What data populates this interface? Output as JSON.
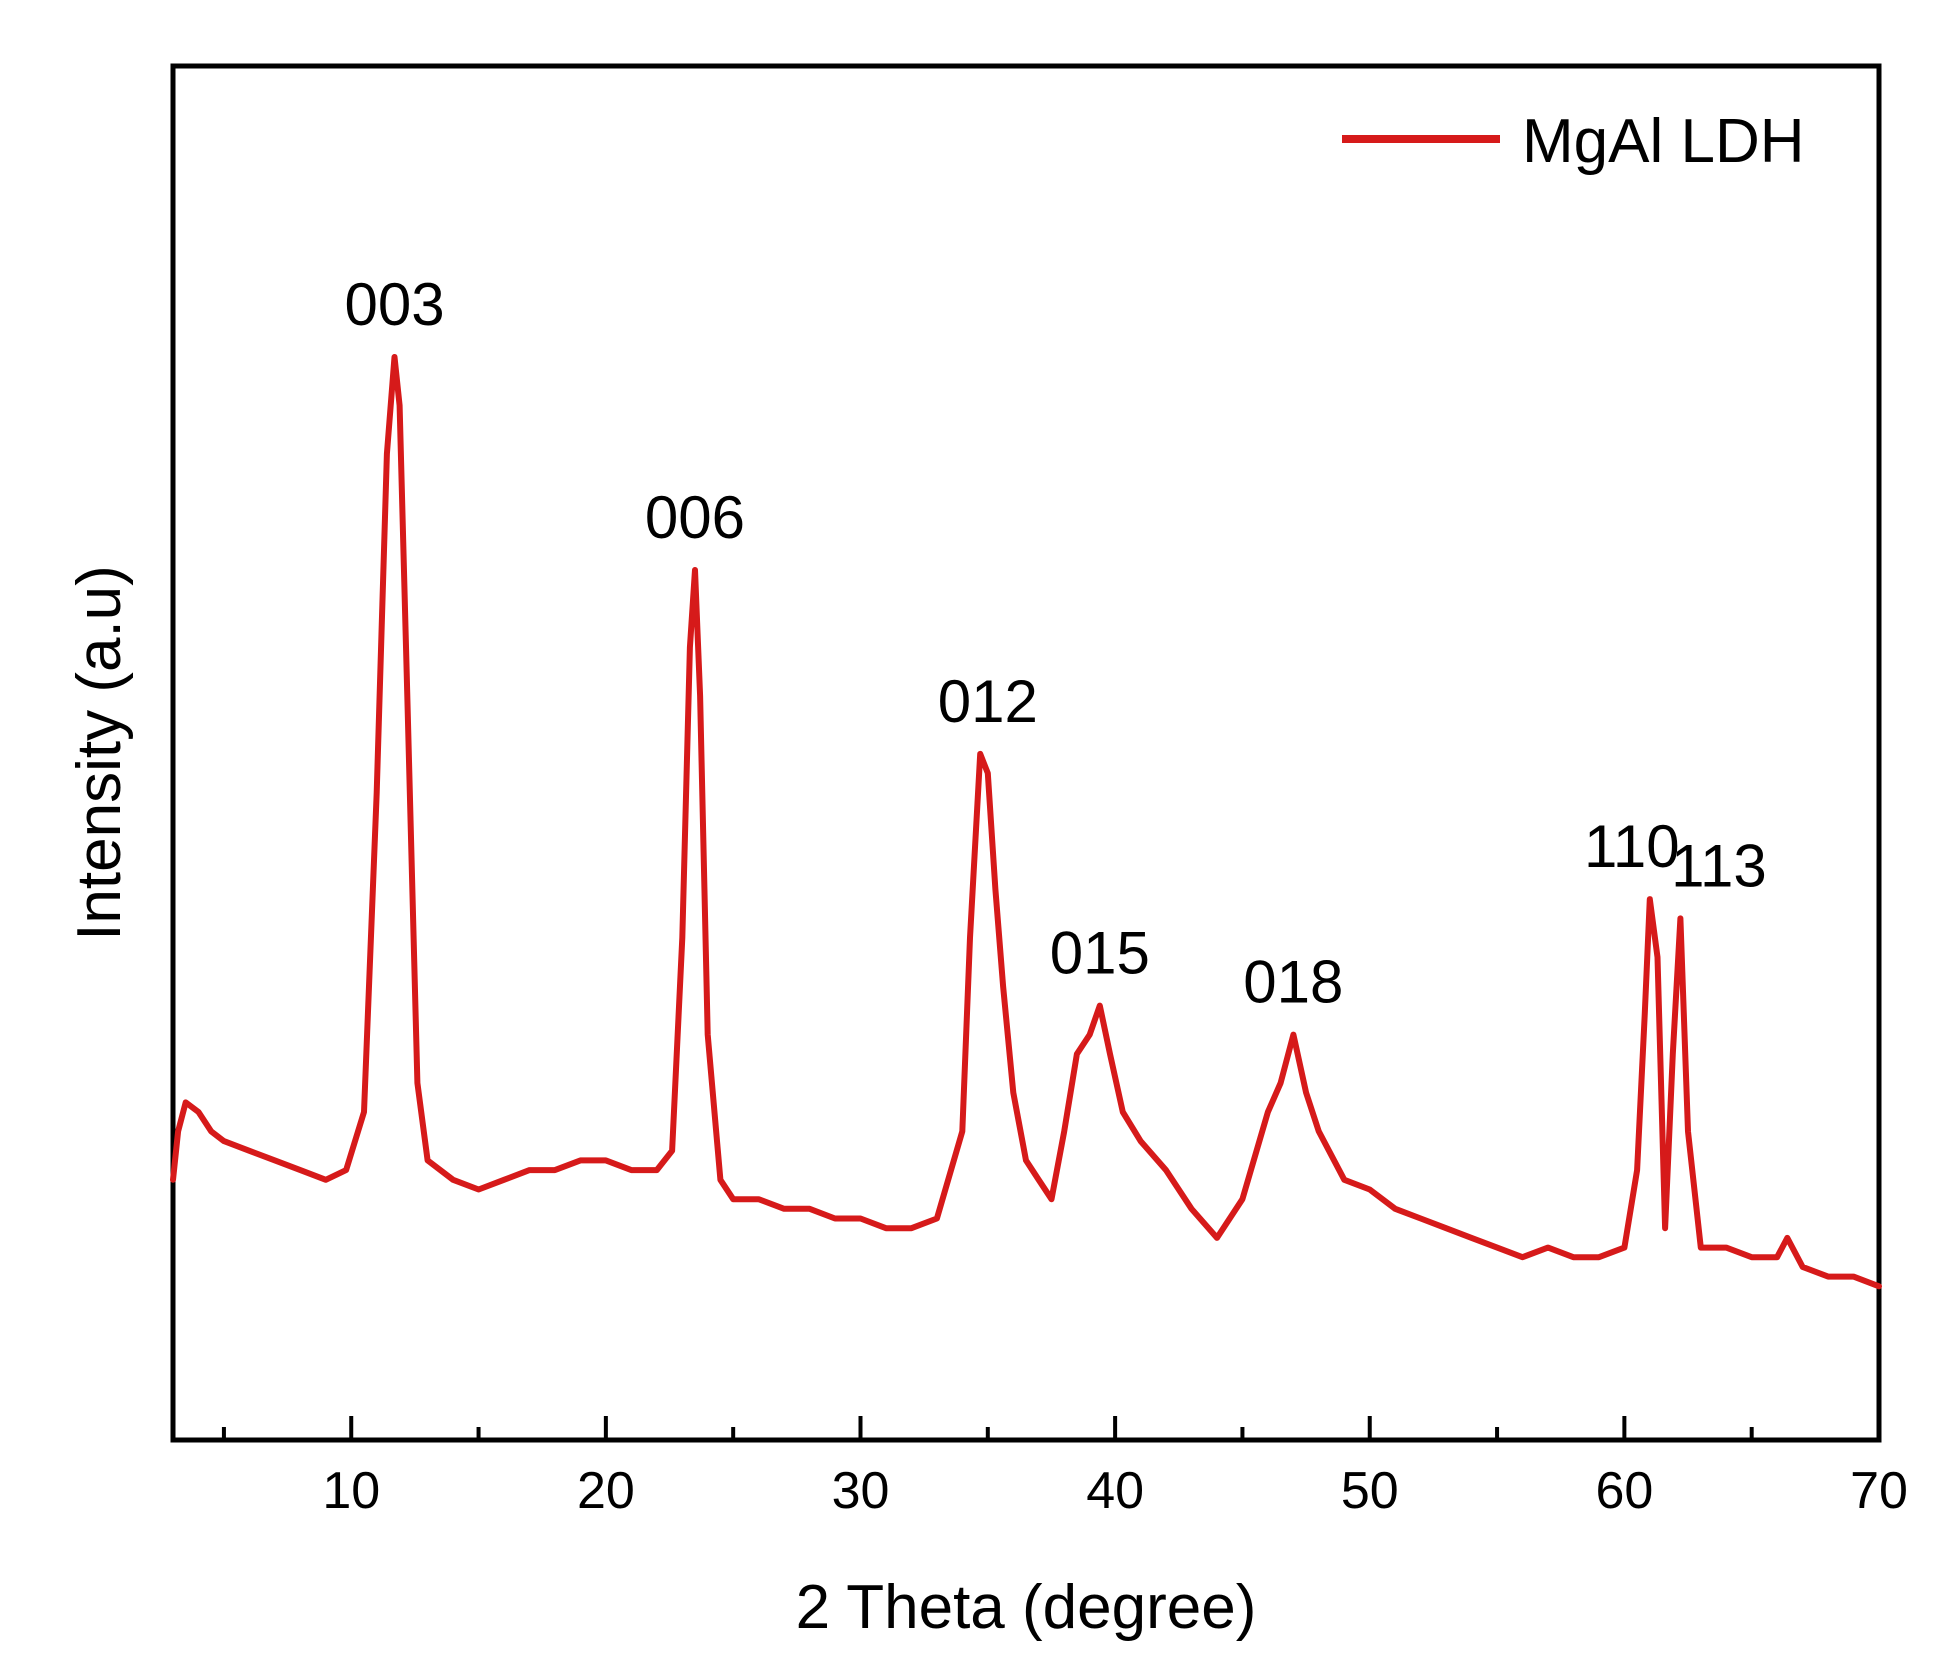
{
  "chart_data": {
    "type": "line",
    "title": "",
    "xlabel": "2 Theta (degree)",
    "ylabel": "Intensity (a.u)",
    "xlim": [
      3,
      70
    ],
    "ylim": [
      0,
      100
    ],
    "x_ticks": [
      10,
      20,
      30,
      40,
      50,
      60,
      70
    ],
    "x_minor_ticks": [
      5,
      15,
      25,
      35,
      45,
      55,
      65
    ],
    "x_tick_labels": [
      "10",
      "20",
      "30",
      "40",
      "50",
      "60",
      "70"
    ],
    "y_ticks_shown": false,
    "grid": false,
    "legend": {
      "position": "top-right",
      "entries": [
        "MgAl LDH"
      ]
    },
    "line_color": "#d61a1a",
    "series": [
      {
        "name": "MgAl LDH",
        "x": [
          3,
          3.2,
          3.5,
          4,
          4.5,
          5,
          6,
          7,
          8,
          9,
          9.8,
          10.5,
          11,
          11.4,
          11.7,
          11.9,
          12.2,
          12.6,
          13,
          14,
          15,
          16,
          17,
          18,
          19,
          20,
          21,
          22,
          22.6,
          23,
          23.3,
          23.5,
          23.7,
          24,
          24.5,
          25,
          26,
          27,
          28,
          29,
          30,
          31,
          32,
          33,
          34,
          34.3,
          34.7,
          35.0,
          35.3,
          35.6,
          36,
          36.5,
          37,
          37.5,
          38,
          38.5,
          39,
          39.4,
          39.8,
          40.3,
          41,
          42,
          43,
          44,
          45,
          46,
          46.5,
          47.0,
          47.5,
          48,
          49,
          50,
          51,
          52,
          53,
          54,
          55,
          56,
          57,
          58,
          59,
          60,
          60.5,
          60.8,
          61.0,
          61.3,
          61.6,
          61.9,
          62.2,
          62.5,
          63,
          64,
          65,
          66,
          66.4,
          67,
          68,
          69,
          70
        ],
        "y": [
          15,
          20,
          23,
          22,
          20,
          19,
          18,
          17,
          16,
          15,
          16,
          22,
          55,
          90,
          100,
          95,
          65,
          25,
          17,
          15,
          14,
          15,
          16,
          16,
          17,
          17,
          16,
          16,
          18,
          40,
          70,
          78,
          65,
          30,
          15,
          13,
          13,
          12,
          12,
          11,
          11,
          10,
          10,
          11,
          20,
          40,
          59,
          57,
          45,
          35,
          24,
          17,
          15,
          13,
          20,
          28,
          30,
          33,
          28,
          22,
          19,
          16,
          12,
          9,
          13,
          22,
          25,
          30,
          24,
          20,
          15,
          14,
          12,
          11,
          10,
          9,
          8,
          7,
          8,
          7,
          7,
          8,
          16,
          32,
          44,
          38,
          10,
          28,
          42,
          20,
          8,
          8,
          7,
          7,
          9,
          6,
          5,
          5,
          4
        ]
      }
    ],
    "peak_labels": [
      {
        "text": "003",
        "x": 11.7
      },
      {
        "text": "006",
        "x": 23.5
      },
      {
        "text": "012",
        "x": 35.0
      },
      {
        "text": "015",
        "x": 39.4
      },
      {
        "text": "018",
        "x": 47.0
      },
      {
        "text": "110",
        "x": 61.0
      },
      {
        "text": "113",
        "x": 62.3
      }
    ]
  }
}
